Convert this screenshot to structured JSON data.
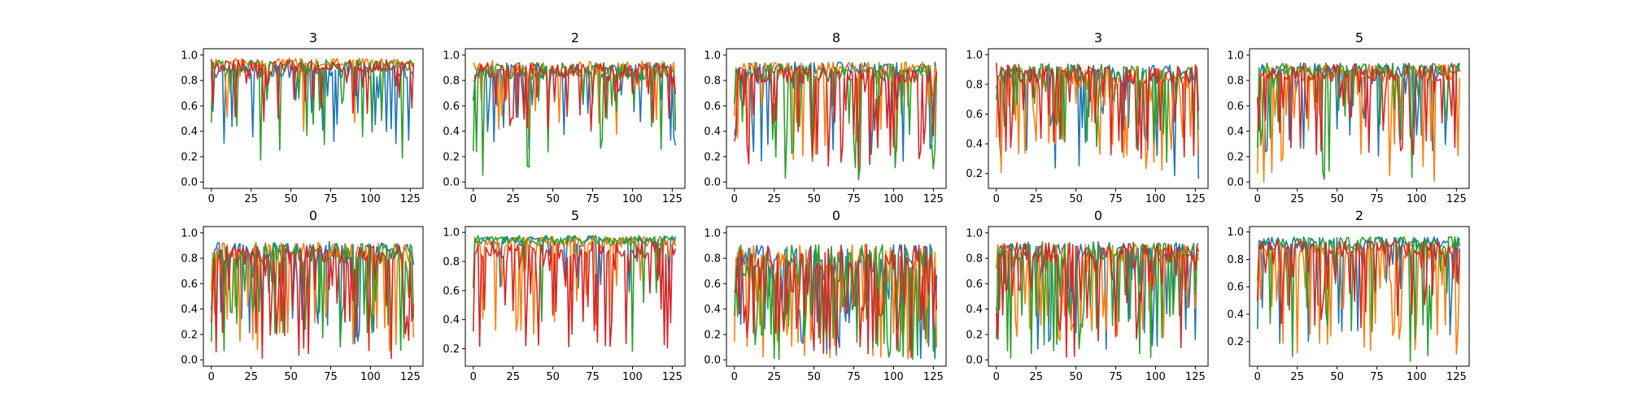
{
  "figure": {
    "background": "#ffffff",
    "series_colors": [
      "#1f77b4",
      "#ff7f0e",
      "#2ca02c",
      "#d62728"
    ]
  },
  "chart_data": [
    {
      "type": "line",
      "title": "3",
      "xlim": [
        -5,
        133
      ],
      "ylim": [
        -0.05,
        1.05
      ],
      "xticks": [
        "0",
        "25",
        "50",
        "75",
        "100",
        "125"
      ],
      "yticks": [
        "0.0",
        "0.2",
        "0.4",
        "0.6",
        "0.8",
        "1.0"
      ],
      "ytick_values": [
        0.0,
        0.2,
        0.4,
        0.6,
        0.8,
        1.0
      ],
      "n_points": 128,
      "series": [
        {
          "color": "#1f77b4",
          "base": 0.86,
          "spread": 0.12,
          "drop_prob": 0.14,
          "drop_min": 0.3
        },
        {
          "color": "#ff7f0e",
          "base": 0.93,
          "spread": 0.07,
          "drop_prob": 0.1,
          "drop_min": 0.4
        },
        {
          "color": "#2ca02c",
          "base": 0.9,
          "spread": 0.1,
          "drop_prob": 0.14,
          "drop_min": 0.1
        },
        {
          "color": "#d62728",
          "base": 0.9,
          "spread": 0.1,
          "drop_prob": 0.18,
          "drop_min": 0.4
        }
      ]
    },
    {
      "type": "line",
      "title": "2",
      "xlim": [
        -5,
        133
      ],
      "ylim": [
        -0.05,
        1.05
      ],
      "xticks": [
        "0",
        "25",
        "50",
        "75",
        "100",
        "125"
      ],
      "yticks": [
        "0.0",
        "0.2",
        "0.4",
        "0.6",
        "0.8",
        "1.0"
      ],
      "ytick_values": [
        0.0,
        0.2,
        0.4,
        0.6,
        0.8,
        1.0
      ],
      "n_points": 128,
      "series": [
        {
          "color": "#1f77b4",
          "base": 0.86,
          "spread": 0.12,
          "drop_prob": 0.18,
          "drop_min": 0.25
        },
        {
          "color": "#ff7f0e",
          "base": 0.88,
          "spread": 0.12,
          "drop_prob": 0.16,
          "drop_min": 0.35
        },
        {
          "color": "#2ca02c",
          "base": 0.85,
          "spread": 0.14,
          "drop_prob": 0.2,
          "drop_min": 0.05
        },
        {
          "color": "#d62728",
          "base": 0.86,
          "spread": 0.12,
          "drop_prob": 0.2,
          "drop_min": 0.4
        }
      ]
    },
    {
      "type": "line",
      "title": "8",
      "xlim": [
        -5,
        133
      ],
      "ylim": [
        -0.05,
        1.05
      ],
      "xticks": [
        "0",
        "25",
        "50",
        "75",
        "100",
        "125"
      ],
      "yticks": [
        "0.0",
        "0.2",
        "0.4",
        "0.6",
        "0.8",
        "1.0"
      ],
      "ytick_values": [
        0.0,
        0.2,
        0.4,
        0.6,
        0.8,
        1.0
      ],
      "n_points": 128,
      "series": [
        {
          "color": "#1f77b4",
          "base": 0.88,
          "spread": 0.1,
          "drop_prob": 0.14,
          "drop_min": 0.15
        },
        {
          "color": "#ff7f0e",
          "base": 0.88,
          "spread": 0.1,
          "drop_prob": 0.16,
          "drop_min": 0.1
        },
        {
          "color": "#2ca02c",
          "base": 0.84,
          "spread": 0.14,
          "drop_prob": 0.24,
          "drop_min": 0.0
        },
        {
          "color": "#d62728",
          "base": 0.82,
          "spread": 0.14,
          "drop_prob": 0.28,
          "drop_min": 0.1
        }
      ]
    },
    {
      "type": "line",
      "title": "3",
      "xlim": [
        -5,
        133
      ],
      "ylim": [
        0.1,
        1.04
      ],
      "xticks": [
        "0",
        "25",
        "50",
        "75",
        "100",
        "125"
      ],
      "yticks": [
        "0.2",
        "0.4",
        "0.6",
        "0.8",
        "1.0"
      ],
      "ytick_values": [
        0.2,
        0.4,
        0.6,
        0.8,
        1.0
      ],
      "n_points": 128,
      "series": [
        {
          "color": "#1f77b4",
          "base": 0.84,
          "spread": 0.14,
          "drop_prob": 0.22,
          "drop_min": 0.15
        },
        {
          "color": "#ff7f0e",
          "base": 0.82,
          "spread": 0.16,
          "drop_prob": 0.24,
          "drop_min": 0.2
        },
        {
          "color": "#2ca02c",
          "base": 0.86,
          "spread": 0.12,
          "drop_prob": 0.18,
          "drop_min": 0.25
        },
        {
          "color": "#d62728",
          "base": 0.84,
          "spread": 0.14,
          "drop_prob": 0.22,
          "drop_min": 0.3
        }
      ]
    },
    {
      "type": "line",
      "title": "5",
      "xlim": [
        -5,
        133
      ],
      "ylim": [
        -0.05,
        1.05
      ],
      "xticks": [
        "0",
        "25",
        "50",
        "75",
        "100",
        "125"
      ],
      "yticks": [
        "0.0",
        "0.2",
        "0.4",
        "0.6",
        "0.8",
        "1.0"
      ],
      "ytick_values": [
        0.0,
        0.2,
        0.4,
        0.6,
        0.8,
        1.0
      ],
      "n_points": 128,
      "series": [
        {
          "color": "#1f77b4",
          "base": 0.86,
          "spread": 0.12,
          "drop_prob": 0.2,
          "drop_min": 0.2
        },
        {
          "color": "#ff7f0e",
          "base": 0.84,
          "spread": 0.14,
          "drop_prob": 0.24,
          "drop_min": 0.0
        },
        {
          "color": "#2ca02c",
          "base": 0.86,
          "spread": 0.12,
          "drop_prob": 0.2,
          "drop_min": 0.0
        },
        {
          "color": "#d62728",
          "base": 0.84,
          "spread": 0.14,
          "drop_prob": 0.26,
          "drop_min": 0.2
        }
      ]
    },
    {
      "type": "line",
      "title": "0",
      "xlim": [
        -5,
        133
      ],
      "ylim": [
        -0.05,
        1.05
      ],
      "xticks": [
        "0",
        "25",
        "50",
        "75",
        "100",
        "125"
      ],
      "yticks": [
        "0.0",
        "0.2",
        "0.4",
        "0.6",
        "0.8",
        "1.0"
      ],
      "ytick_values": [
        0.0,
        0.2,
        0.4,
        0.6,
        0.8,
        1.0
      ],
      "n_points": 128,
      "series": [
        {
          "color": "#1f77b4",
          "base": 0.84,
          "spread": 0.14,
          "drop_prob": 0.22,
          "drop_min": 0.1
        },
        {
          "color": "#ff7f0e",
          "base": 0.82,
          "spread": 0.16,
          "drop_prob": 0.24,
          "drop_min": 0.05
        },
        {
          "color": "#2ca02c",
          "base": 0.82,
          "spread": 0.16,
          "drop_prob": 0.26,
          "drop_min": 0.05
        },
        {
          "color": "#d62728",
          "base": 0.8,
          "spread": 0.16,
          "drop_prob": 0.3,
          "drop_min": 0.0
        }
      ]
    },
    {
      "type": "line",
      "title": "5",
      "xlim": [
        -5,
        133
      ],
      "ylim": [
        0.08,
        1.04
      ],
      "xticks": [
        "0",
        "25",
        "50",
        "75",
        "100",
        "125"
      ],
      "yticks": [
        "0.2",
        "0.4",
        "0.6",
        "0.8",
        "1.0"
      ],
      "ytick_values": [
        0.2,
        0.4,
        0.6,
        0.8,
        1.0
      ],
      "n_points": 128,
      "series": [
        {
          "color": "#1f77b4",
          "base": 0.93,
          "spread": 0.07,
          "drop_prob": 0.1,
          "drop_min": 0.5
        },
        {
          "color": "#ff7f0e",
          "base": 0.92,
          "spread": 0.08,
          "drop_prob": 0.12,
          "drop_min": 0.3
        },
        {
          "color": "#2ca02c",
          "base": 0.94,
          "spread": 0.06,
          "drop_prob": 0.08,
          "drop_min": 0.1
        },
        {
          "color": "#d62728",
          "base": 0.86,
          "spread": 0.12,
          "drop_prob": 0.24,
          "drop_min": 0.2
        }
      ]
    },
    {
      "type": "line",
      "title": "0",
      "xlim": [
        -5,
        133
      ],
      "ylim": [
        -0.05,
        1.05
      ],
      "xticks": [
        "0",
        "25",
        "50",
        "75",
        "100",
        "125"
      ],
      "yticks": [
        "0.0",
        "0.2",
        "0.4",
        "0.6",
        "0.8",
        "1.0"
      ],
      "ytick_values": [
        0.0,
        0.2,
        0.4,
        0.6,
        0.8,
        1.0
      ],
      "n_points": 128,
      "series": [
        {
          "color": "#1f77b4",
          "base": 0.8,
          "spread": 0.18,
          "drop_prob": 0.4,
          "drop_min": 0.0
        },
        {
          "color": "#ff7f0e",
          "base": 0.78,
          "spread": 0.2,
          "drop_prob": 0.42,
          "drop_min": 0.0
        },
        {
          "color": "#2ca02c",
          "base": 0.78,
          "spread": 0.2,
          "drop_prob": 0.44,
          "drop_min": 0.0
        },
        {
          "color": "#d62728",
          "base": 0.78,
          "spread": 0.2,
          "drop_prob": 0.46,
          "drop_min": 0.0
        }
      ]
    },
    {
      "type": "line",
      "title": "0",
      "xlim": [
        -5,
        133
      ],
      "ylim": [
        -0.05,
        1.05
      ],
      "xticks": [
        "0",
        "25",
        "50",
        "75",
        "100",
        "125"
      ],
      "yticks": [
        "0.0",
        "0.2",
        "0.4",
        "0.6",
        "0.8",
        "1.0"
      ],
      "ytick_values": [
        0.0,
        0.2,
        0.4,
        0.6,
        0.8,
        1.0
      ],
      "n_points": 128,
      "series": [
        {
          "color": "#1f77b4",
          "base": 0.84,
          "spread": 0.14,
          "drop_prob": 0.3,
          "drop_min": 0.05
        },
        {
          "color": "#ff7f0e",
          "base": 0.82,
          "spread": 0.16,
          "drop_prob": 0.32,
          "drop_min": 0.15
        },
        {
          "color": "#2ca02c",
          "base": 0.84,
          "spread": 0.14,
          "drop_prob": 0.28,
          "drop_min": 0.0
        },
        {
          "color": "#d62728",
          "base": 0.82,
          "spread": 0.16,
          "drop_prob": 0.36,
          "drop_min": 0.0
        }
      ]
    },
    {
      "type": "line",
      "title": "2",
      "xlim": [
        -5,
        133
      ],
      "ylim": [
        0.02,
        1.04
      ],
      "xticks": [
        "0",
        "25",
        "50",
        "75",
        "100",
        "125"
      ],
      "yticks": [
        "0.2",
        "0.4",
        "0.6",
        "0.8",
        "1.0"
      ],
      "ytick_values": [
        0.2,
        0.4,
        0.6,
        0.8,
        1.0
      ],
      "n_points": 128,
      "series": [
        {
          "color": "#1f77b4",
          "base": 0.9,
          "spread": 0.1,
          "drop_prob": 0.14,
          "drop_min": 0.1
        },
        {
          "color": "#ff7f0e",
          "base": 0.84,
          "spread": 0.14,
          "drop_prob": 0.24,
          "drop_min": 0.1
        },
        {
          "color": "#2ca02c",
          "base": 0.9,
          "spread": 0.1,
          "drop_prob": 0.16,
          "drop_min": 0.05
        },
        {
          "color": "#d62728",
          "base": 0.86,
          "spread": 0.12,
          "drop_prob": 0.22,
          "drop_min": 0.3
        }
      ]
    }
  ]
}
